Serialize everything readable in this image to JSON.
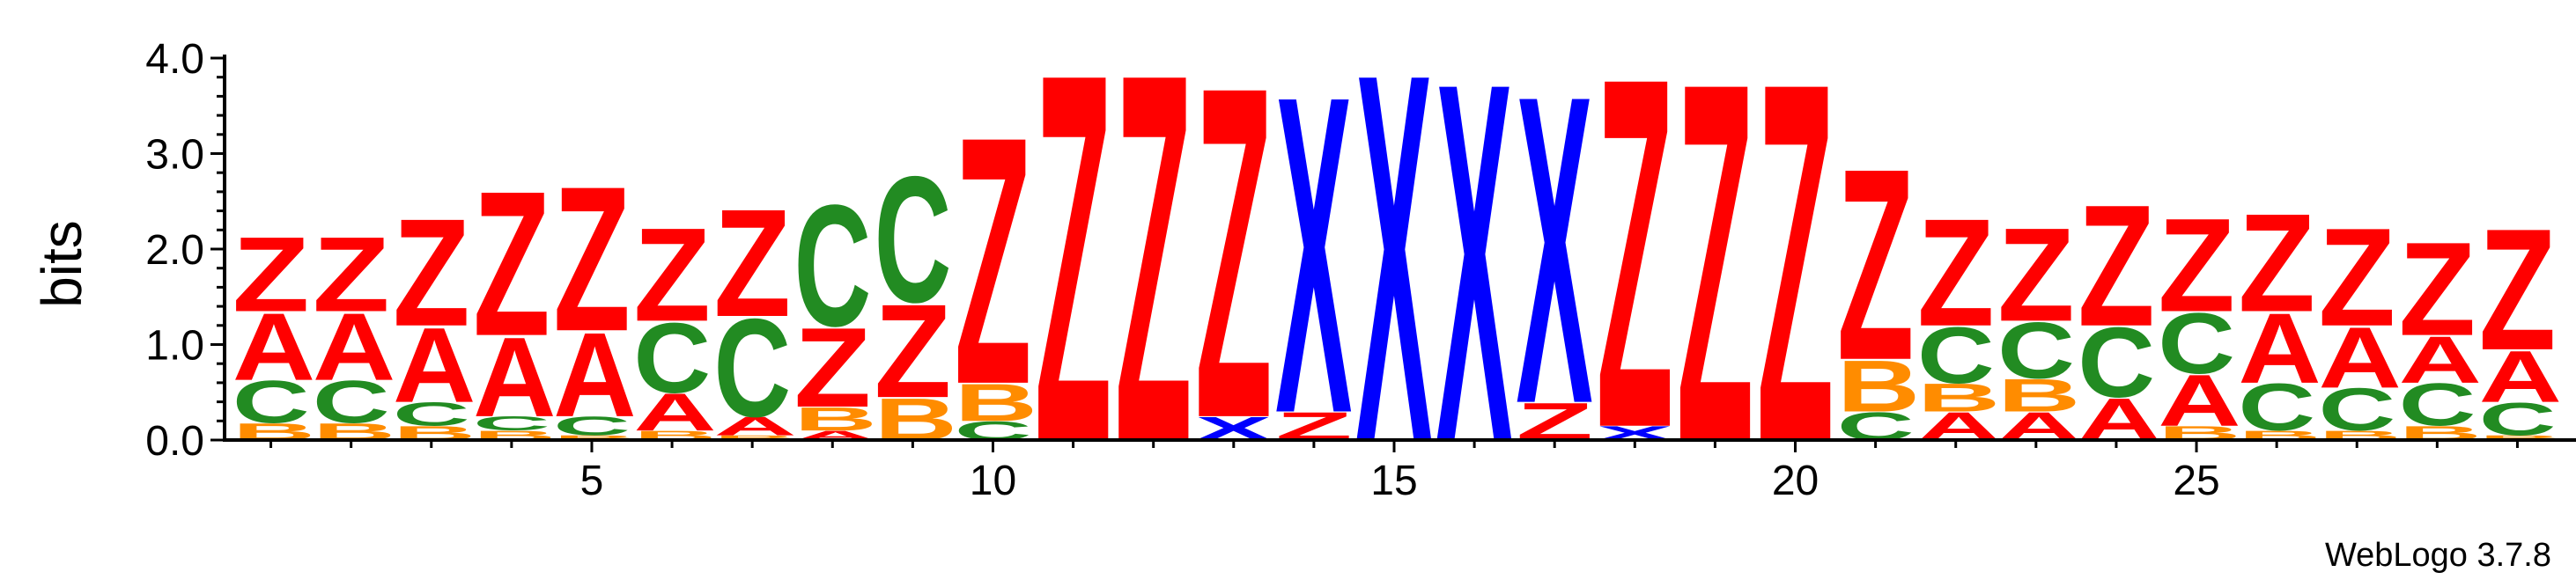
{
  "chart_data": {
    "type": "sequence_logo",
    "ylabel": "bits",
    "ylim": [
      0,
      4.0
    ],
    "yticks": [
      "0.0",
      "1.0",
      "2.0",
      "3.0",
      "4.0"
    ],
    "xticks": [
      5,
      10,
      15,
      20,
      25
    ],
    "credit": "WebLogo 3.7.8",
    "colors": {
      "Z": "#ff0000",
      "A": "#ff0000",
      "C": "#228b22",
      "B": "#ff8c00",
      "X": "#0000ff"
    },
    "positions": [
      {
        "pos": 1,
        "stack": [
          [
            "B",
            0.18
          ],
          [
            "C",
            0.45
          ],
          [
            "A",
            0.72
          ],
          [
            "Z",
            0.8
          ]
        ]
      },
      {
        "pos": 2,
        "stack": [
          [
            "B",
            0.18
          ],
          [
            "C",
            0.45
          ],
          [
            "A",
            0.72
          ],
          [
            "Z",
            0.8
          ]
        ]
      },
      {
        "pos": 3,
        "stack": [
          [
            "B",
            0.15
          ],
          [
            "C",
            0.25
          ],
          [
            "A",
            0.8
          ],
          [
            "Z",
            1.15
          ]
        ]
      },
      {
        "pos": 4,
        "stack": [
          [
            "B",
            0.1
          ],
          [
            "C",
            0.15
          ],
          [
            "A",
            0.85
          ],
          [
            "Z",
            1.55
          ]
        ]
      },
      {
        "pos": 5,
        "stack": [
          [
            "B",
            0.05
          ],
          [
            "C",
            0.2
          ],
          [
            "A",
            0.9
          ],
          [
            "Z",
            1.55
          ]
        ]
      },
      {
        "pos": 6,
        "stack": [
          [
            "B",
            0.1
          ],
          [
            "A",
            0.4
          ],
          [
            "C",
            0.75
          ],
          [
            "Z",
            1.0
          ]
        ]
      },
      {
        "pos": 7,
        "stack": [
          [
            "B",
            0.05
          ],
          [
            "A",
            0.2
          ],
          [
            "C",
            1.05
          ],
          [
            "Z",
            1.15
          ]
        ]
      },
      {
        "pos": 8,
        "stack": [
          [
            "A",
            0.1
          ],
          [
            "B",
            0.25
          ],
          [
            "Z",
            0.85
          ],
          [
            "C",
            1.3
          ]
        ]
      },
      {
        "pos": 9,
        "stack": [
          [
            "B",
            0.45
          ],
          [
            "Z",
            1.0
          ],
          [
            "C",
            1.35
          ]
        ]
      },
      {
        "pos": 10,
        "stack": [
          [
            "C",
            0.2
          ],
          [
            "B",
            0.4
          ],
          [
            "Z",
            2.65
          ]
        ]
      },
      {
        "pos": 11,
        "stack": [
          [
            "Z",
            3.95
          ]
        ]
      },
      {
        "pos": 12,
        "stack": [
          [
            "Z",
            3.95
          ]
        ]
      },
      {
        "pos": 13,
        "stack": [
          [
            "X",
            0.25
          ],
          [
            "Z",
            3.55
          ]
        ]
      },
      {
        "pos": 14,
        "stack": [
          [
            "Z",
            0.3
          ],
          [
            "X",
            3.4
          ]
        ]
      },
      {
        "pos": 15,
        "stack": [
          [
            "X",
            3.95
          ]
        ]
      },
      {
        "pos": 16,
        "stack": [
          [
            "X",
            3.85
          ]
        ]
      },
      {
        "pos": 17,
        "stack": [
          [
            "Z",
            0.4
          ],
          [
            "X",
            3.3
          ]
        ]
      },
      {
        "pos": 18,
        "stack": [
          [
            "X",
            0.15
          ],
          [
            "Z",
            3.75
          ]
        ]
      },
      {
        "pos": 19,
        "stack": [
          [
            "Z",
            3.85
          ]
        ]
      },
      {
        "pos": 20,
        "stack": [
          [
            "Z",
            3.85
          ]
        ]
      },
      {
        "pos": 21,
        "stack": [
          [
            "C",
            0.3
          ],
          [
            "B",
            0.55
          ],
          [
            "Z",
            2.05
          ]
        ]
      },
      {
        "pos": 22,
        "stack": [
          [
            "A",
            0.3
          ],
          [
            "B",
            0.3
          ],
          [
            "C",
            0.6
          ],
          [
            "Z",
            1.15
          ]
        ]
      },
      {
        "pos": 23,
        "stack": [
          [
            "A",
            0.3
          ],
          [
            "B",
            0.35
          ],
          [
            "C",
            0.6
          ],
          [
            "Z",
            1.0
          ]
        ]
      },
      {
        "pos": 24,
        "stack": [
          [
            "A",
            0.45
          ],
          [
            "C",
            0.75
          ],
          [
            "Z",
            1.3
          ]
        ]
      },
      {
        "pos": 25,
        "stack": [
          [
            "B",
            0.15
          ],
          [
            "A",
            0.55
          ],
          [
            "C",
            0.65
          ],
          [
            "Z",
            1.0
          ]
        ]
      },
      {
        "pos": 26,
        "stack": [
          [
            "B",
            0.1
          ],
          [
            "C",
            0.5
          ],
          [
            "A",
            0.75
          ],
          [
            "Z",
            1.05
          ]
        ]
      },
      {
        "pos": 27,
        "stack": [
          [
            "B",
            0.1
          ],
          [
            "C",
            0.45
          ],
          [
            "A",
            0.65
          ],
          [
            "Z",
            1.05
          ]
        ]
      },
      {
        "pos": 28,
        "stack": [
          [
            "B",
            0.15
          ],
          [
            "C",
            0.45
          ],
          [
            "A",
            0.5
          ],
          [
            "Z",
            1.0
          ]
        ]
      },
      {
        "pos": 29,
        "stack": [
          [
            "B",
            0.05
          ],
          [
            "C",
            0.35
          ],
          [
            "A",
            0.55
          ],
          [
            "Z",
            1.3
          ]
        ]
      }
    ]
  }
}
